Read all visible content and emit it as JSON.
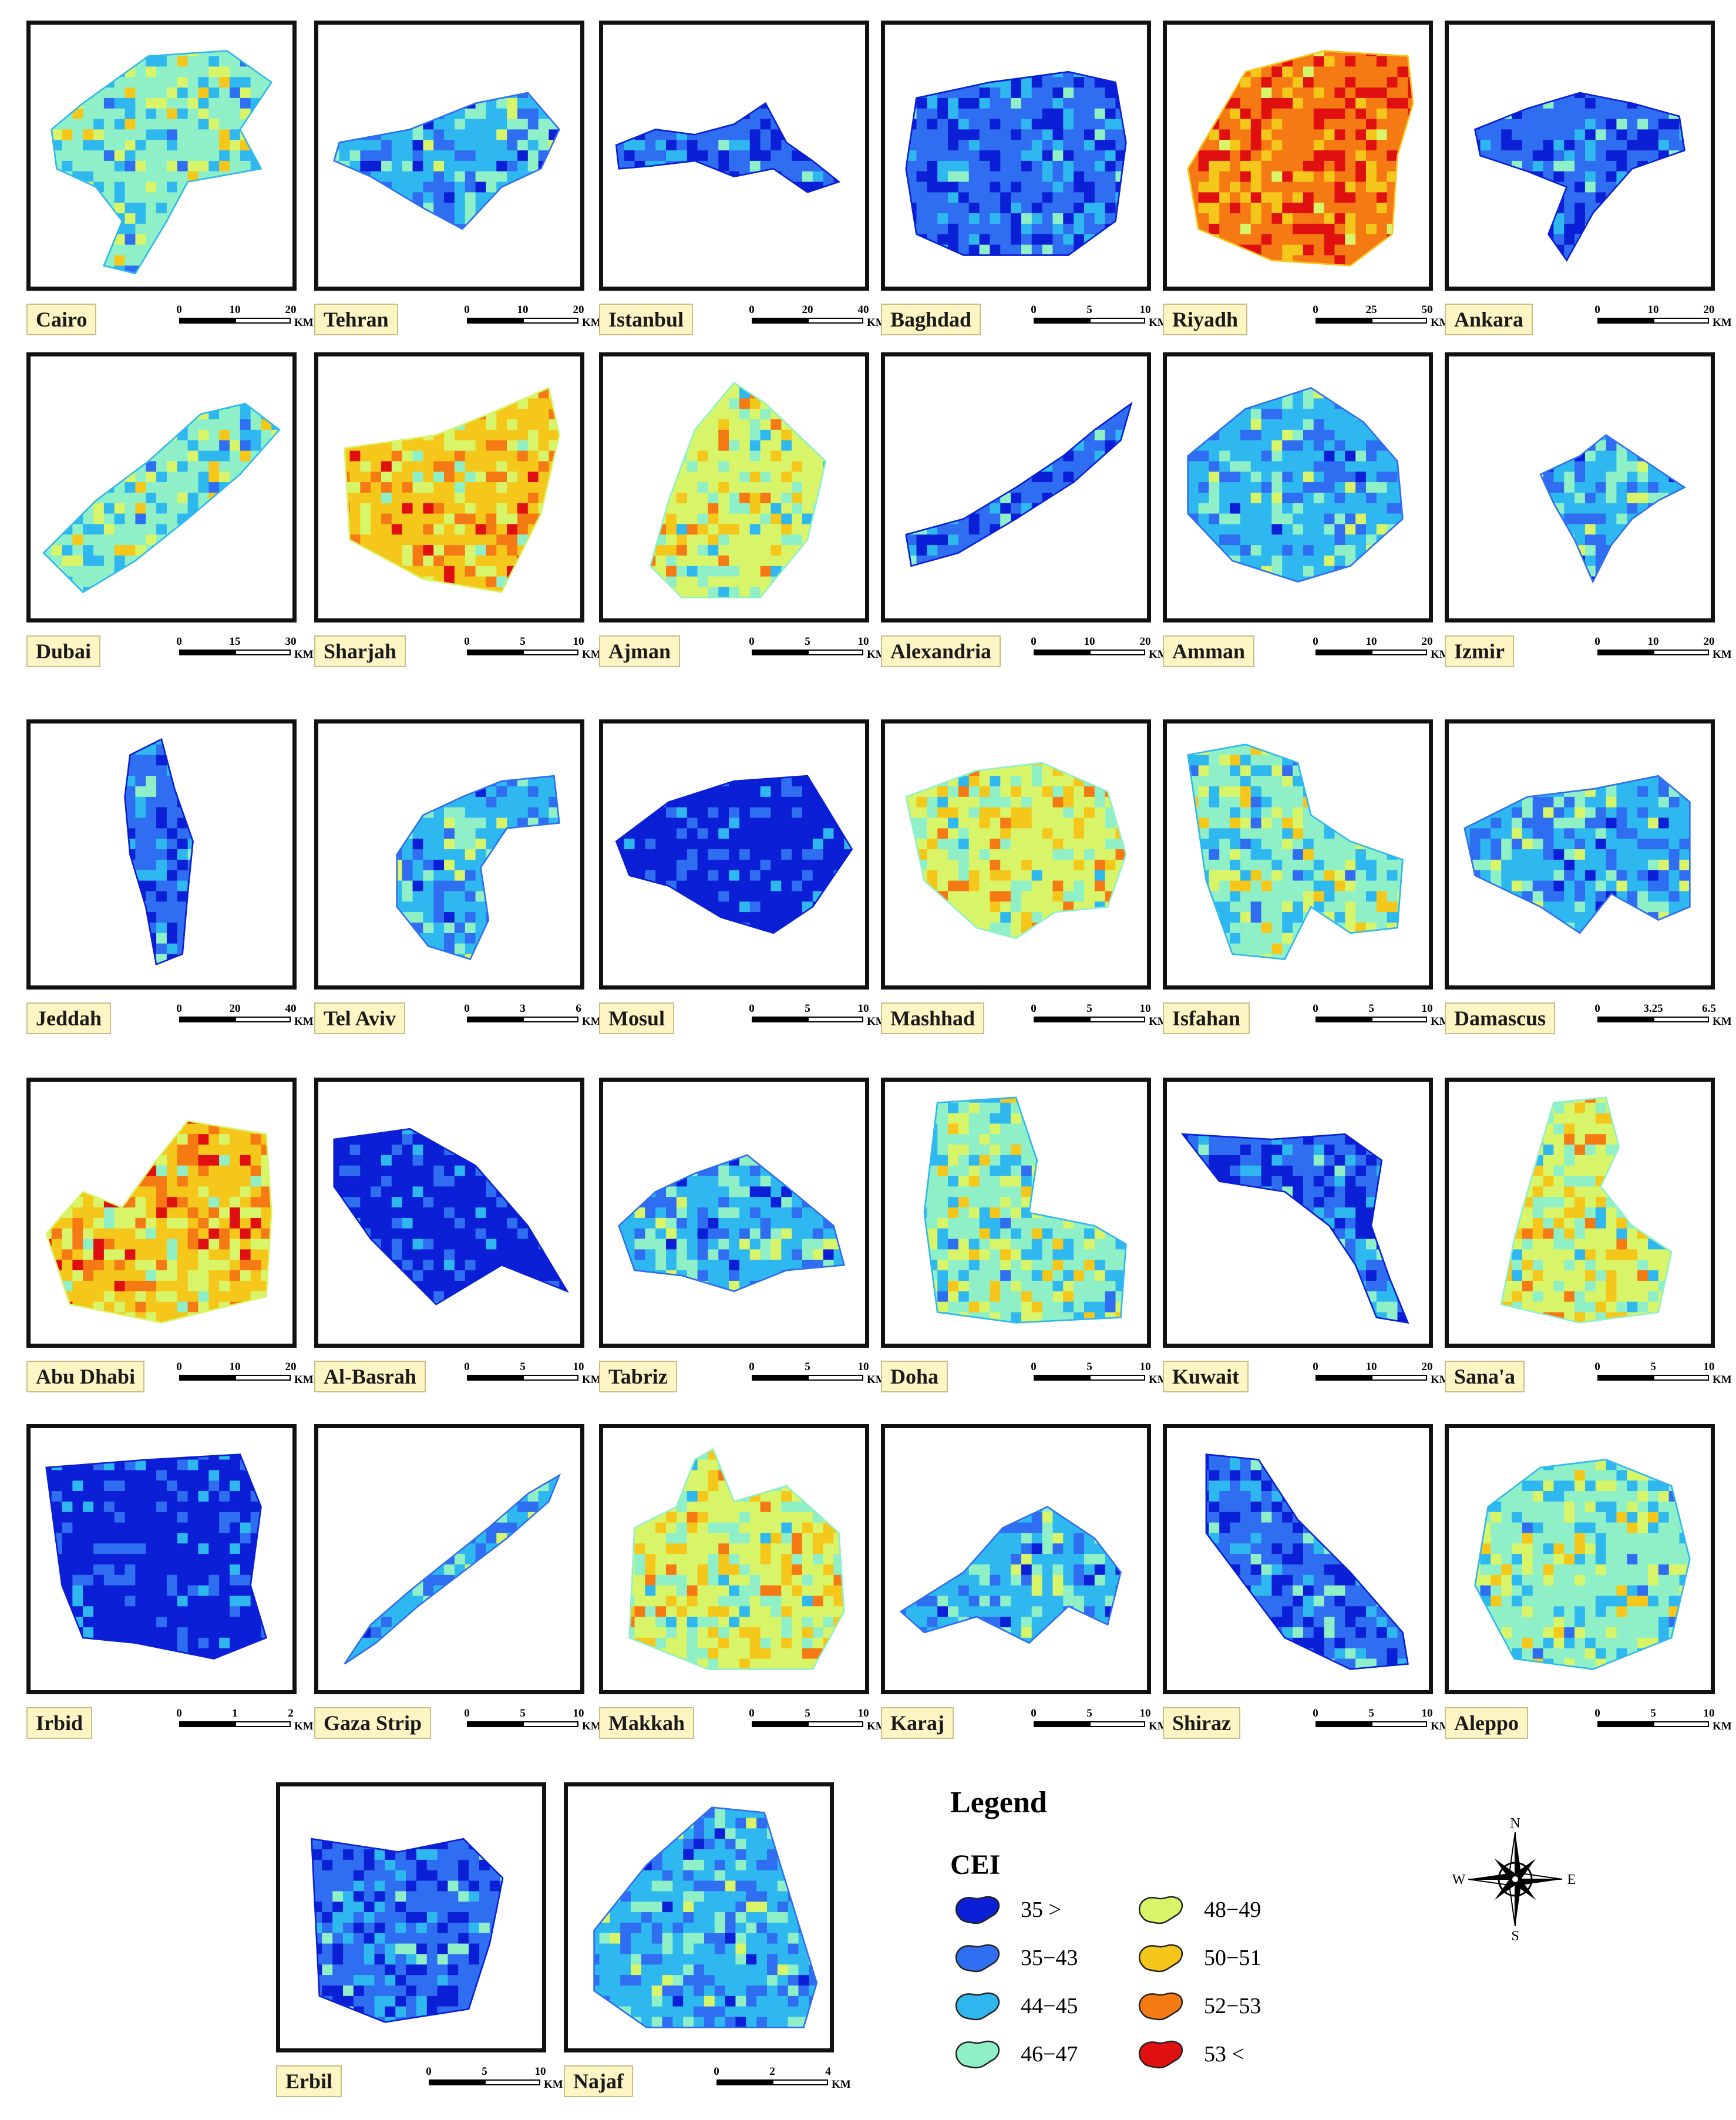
{
  "legend": {
    "title": "Legend",
    "subtitle": "CEI",
    "classes": [
      {
        "label": "35 >",
        "color": "#0a1fd6"
      },
      {
        "label": "35−43",
        "color": "#2f6ef0"
      },
      {
        "label": "44−45",
        "color": "#2fb8f0"
      },
      {
        "label": "46−47",
        "color": "#8ff0c8"
      },
      {
        "label": "48−49",
        "color": "#d8f56a"
      },
      {
        "label": "50−51",
        "color": "#f5c71a"
      },
      {
        "label": "52−53",
        "color": "#f57a14"
      },
      {
        "label": "53 <",
        "color": "#e01010"
      }
    ]
  },
  "compass": {
    "n": "N",
    "s": "S",
    "e": "E",
    "w": "W"
  },
  "scale_unit": "KM",
  "cities": [
    {
      "name": "Cairo",
      "ticks": [
        "0",
        "10",
        "20"
      ],
      "dominant": 3
    },
    {
      "name": "Tehran",
      "ticks": [
        "0",
        "10",
        "20"
      ],
      "dominant": 2
    },
    {
      "name": "Istanbul",
      "ticks": [
        "0",
        "20",
        "40"
      ],
      "dominant": 1
    },
    {
      "name": "Baghdad",
      "ticks": [
        "0",
        "5",
        "10"
      ],
      "dominant": 1
    },
    {
      "name": "Riyadh",
      "ticks": [
        "0",
        "25",
        "50"
      ],
      "dominant": 6
    },
    {
      "name": "Ankara",
      "ticks": [
        "0",
        "10",
        "20"
      ],
      "dominant": 1
    },
    {
      "name": "Dubai",
      "ticks": [
        "0",
        "15",
        "30"
      ],
      "dominant": 3
    },
    {
      "name": "Sharjah",
      "ticks": [
        "0",
        "5",
        "10"
      ],
      "dominant": 5
    },
    {
      "name": "Ajman",
      "ticks": [
        "0",
        "5",
        "10"
      ],
      "dominant": 4
    },
    {
      "name": "Alexandria",
      "ticks": [
        "0",
        "10",
        "20"
      ],
      "dominant": 1
    },
    {
      "name": "Amman",
      "ticks": [
        "0",
        "10",
        "20"
      ],
      "dominant": 2
    },
    {
      "name": "Izmir",
      "ticks": [
        "0",
        "10",
        "20"
      ],
      "dominant": 2
    },
    {
      "name": "Jeddah",
      "ticks": [
        "0",
        "20",
        "40"
      ],
      "dominant": 1
    },
    {
      "name": "Tel Aviv",
      "ticks": [
        "0",
        "3",
        "6"
      ],
      "dominant": 2
    },
    {
      "name": "Mosul",
      "ticks": [
        "0",
        "5",
        "10"
      ],
      "dominant": 0
    },
    {
      "name": "Mashhad",
      "ticks": [
        "0",
        "5",
        "10"
      ],
      "dominant": 4
    },
    {
      "name": "Isfahan",
      "ticks": [
        "0",
        "5",
        "10"
      ],
      "dominant": 3
    },
    {
      "name": "Damascus",
      "ticks": [
        "0",
        "3.25",
        "6.5"
      ],
      "dominant": 2
    },
    {
      "name": "Abu Dhabi",
      "ticks": [
        "0",
        "10",
        "20"
      ],
      "dominant": 5
    },
    {
      "name": "Al-Basrah",
      "ticks": [
        "0",
        "5",
        "10"
      ],
      "dominant": 0
    },
    {
      "name": "Tabriz",
      "ticks": [
        "0",
        "5",
        "10"
      ],
      "dominant": 2
    },
    {
      "name": "Doha",
      "ticks": [
        "0",
        "5",
        "10"
      ],
      "dominant": 3
    },
    {
      "name": "Kuwait",
      "ticks": [
        "0",
        "10",
        "20"
      ],
      "dominant": 1
    },
    {
      "name": "Sana'a",
      "ticks": [
        "0",
        "5",
        "10"
      ],
      "dominant": 4
    },
    {
      "name": "Irbid",
      "ticks": [
        "0",
        "1",
        "2"
      ],
      "dominant": 0
    },
    {
      "name": "Gaza Strip",
      "ticks": [
        "0",
        "5",
        "10"
      ],
      "dominant": 2
    },
    {
      "name": "Makkah",
      "ticks": [
        "0",
        "5",
        "10"
      ],
      "dominant": 4
    },
    {
      "name": "Karaj",
      "ticks": [
        "0",
        "5",
        "10"
      ],
      "dominant": 2
    },
    {
      "name": "Shiraz",
      "ticks": [
        "0",
        "5",
        "10"
      ],
      "dominant": 1
    },
    {
      "name": "Aleppo",
      "ticks": [
        "0",
        "5",
        "10"
      ],
      "dominant": 3
    },
    {
      "name": "Erbil",
      "ticks": [
        "0",
        "5",
        "10"
      ],
      "dominant": 1
    },
    {
      "name": "Najaf",
      "ticks": [
        "0",
        "2",
        "4"
      ],
      "dominant": 2
    }
  ]
}
